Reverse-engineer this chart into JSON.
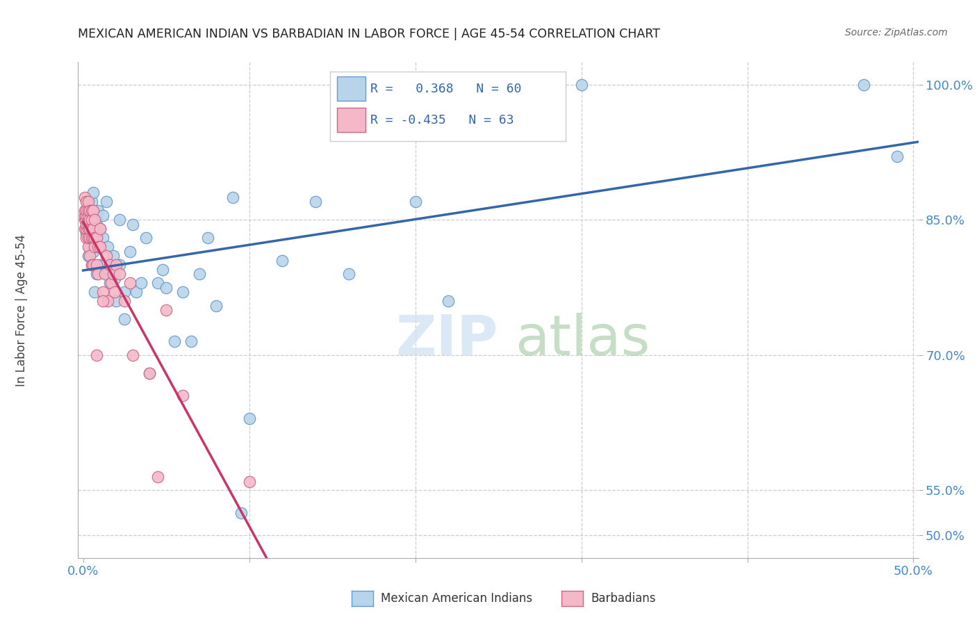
{
  "title": "MEXICAN AMERICAN INDIAN VS BARBADIAN IN LABOR FORCE | AGE 45-54 CORRELATION CHART",
  "source": "Source: ZipAtlas.com",
  "ylabel": "In Labor Force | Age 45-54",
  "ylim": [
    0.475,
    1.025
  ],
  "xlim": [
    -0.003,
    0.503
  ],
  "ytick_vals": [
    0.5,
    0.55,
    0.7,
    0.85,
    1.0
  ],
  "ytick_labels": [
    "50.0%",
    "55.0%",
    "70.0%",
    "85.0%",
    "100.0%"
  ],
  "r_blue": 0.368,
  "n_blue": 60,
  "r_pink": -0.435,
  "n_pink": 63,
  "blue_fill": "#b8d4ea",
  "blue_edge": "#6699cc",
  "pink_fill": "#f4b8c8",
  "pink_edge": "#cc6688",
  "blue_line": "#3366aa",
  "pink_line": "#cc3366",
  "grid_color": "#cccccc",
  "legend_blue": "Mexican American Indians",
  "legend_pink": "Barbadians",
  "blue_x": [
    0.002,
    0.003,
    0.003,
    0.004,
    0.004,
    0.005,
    0.005,
    0.005,
    0.006,
    0.006,
    0.007,
    0.007,
    0.008,
    0.008,
    0.009,
    0.009,
    0.01,
    0.01,
    0.01,
    0.012,
    0.012,
    0.013,
    0.014,
    0.015,
    0.015,
    0.016,
    0.018,
    0.019,
    0.02,
    0.022,
    0.022,
    0.025,
    0.025,
    0.028,
    0.03,
    0.032,
    0.035,
    0.038,
    0.04,
    0.045,
    0.048,
    0.05,
    0.055,
    0.06,
    0.065,
    0.07,
    0.075,
    0.08,
    0.09,
    0.095,
    0.1,
    0.12,
    0.14,
    0.16,
    0.2,
    0.22,
    0.26,
    0.3,
    0.47,
    0.49
  ],
  "blue_y": [
    0.835,
    0.81,
    0.855,
    0.82,
    0.86,
    0.8,
    0.84,
    0.87,
    0.815,
    0.88,
    0.84,
    0.77,
    0.85,
    0.79,
    0.835,
    0.86,
    0.82,
    0.8,
    0.84,
    0.83,
    0.855,
    0.8,
    0.87,
    0.79,
    0.82,
    0.78,
    0.81,
    0.785,
    0.76,
    0.85,
    0.8,
    0.74,
    0.77,
    0.815,
    0.845,
    0.77,
    0.78,
    0.83,
    0.68,
    0.78,
    0.795,
    0.775,
    0.715,
    0.77,
    0.715,
    0.79,
    0.83,
    0.755,
    0.875,
    0.525,
    0.63,
    0.805,
    0.87,
    0.79,
    0.87,
    0.76,
    0.96,
    1.0,
    1.0,
    0.92
  ],
  "pink_x": [
    0.001,
    0.001,
    0.001,
    0.001,
    0.001,
    0.002,
    0.002,
    0.002,
    0.002,
    0.002,
    0.002,
    0.002,
    0.003,
    0.003,
    0.003,
    0.003,
    0.003,
    0.003,
    0.003,
    0.003,
    0.004,
    0.004,
    0.004,
    0.004,
    0.004,
    0.005,
    0.005,
    0.005,
    0.005,
    0.005,
    0.006,
    0.006,
    0.006,
    0.006,
    0.007,
    0.007,
    0.007,
    0.008,
    0.008,
    0.009,
    0.009,
    0.01,
    0.01,
    0.012,
    0.013,
    0.014,
    0.015,
    0.016,
    0.017,
    0.018,
    0.019,
    0.02,
    0.022,
    0.025,
    0.028,
    0.03,
    0.04,
    0.045,
    0.06,
    0.1,
    0.008,
    0.012,
    0.05
  ],
  "pink_y": [
    0.84,
    0.85,
    0.855,
    0.86,
    0.875,
    0.83,
    0.84,
    0.845,
    0.85,
    0.855,
    0.86,
    0.87,
    0.82,
    0.83,
    0.84,
    0.845,
    0.85,
    0.855,
    0.86,
    0.87,
    0.81,
    0.83,
    0.84,
    0.85,
    0.86,
    0.8,
    0.83,
    0.84,
    0.85,
    0.86,
    0.8,
    0.83,
    0.84,
    0.86,
    0.82,
    0.83,
    0.85,
    0.8,
    0.83,
    0.79,
    0.82,
    0.82,
    0.84,
    0.77,
    0.79,
    0.81,
    0.76,
    0.8,
    0.78,
    0.79,
    0.77,
    0.8,
    0.79,
    0.76,
    0.78,
    0.7,
    0.68,
    0.565,
    0.655,
    0.56,
    0.7,
    0.76,
    0.75
  ]
}
